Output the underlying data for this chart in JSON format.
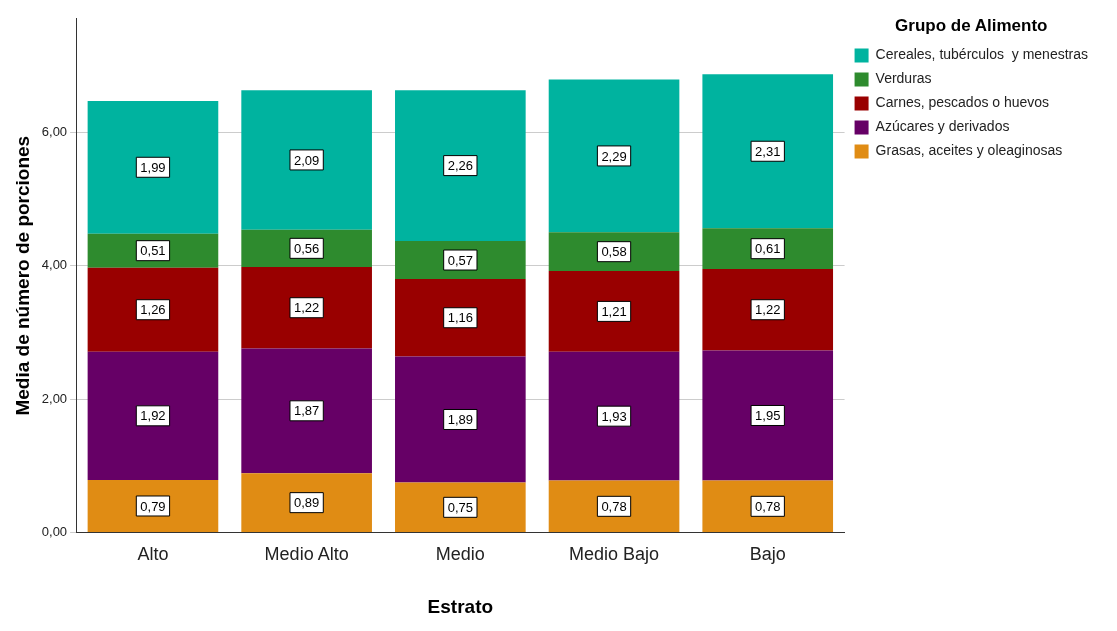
{
  "chart_data": {
    "type": "bar",
    "stacked": true,
    "xlabel": "Estrato",
    "ylabel": "Media de número de porciones",
    "legend_title": "Grupo de Alimento",
    "legend": "right",
    "categories": [
      "Alto",
      "Medio Alto",
      "Medio",
      "Medio Bajo",
      "Bajo"
    ],
    "ylim": [
      0,
      7.7
    ],
    "yticks": [
      {
        "value": 0,
        "label": "0,00"
      },
      {
        "value": 2,
        "label": "2,00"
      },
      {
        "value": 4,
        "label": "4,00"
      },
      {
        "value": 6,
        "label": "6,00"
      }
    ],
    "grid": "y",
    "series": [
      {
        "name": "Grasas, aceites y oleaginosas",
        "color": "#e08c14",
        "values": [
          0.79,
          0.89,
          0.75,
          0.78,
          0.78
        ],
        "value_labels": [
          "0,79",
          "0,89",
          "0,75",
          "0,78",
          "0,78"
        ]
      },
      {
        "name": "Azúcares y derivados",
        "color": "#660066",
        "values": [
          1.92,
          1.87,
          1.89,
          1.93,
          1.95
        ],
        "value_labels": [
          "1,92",
          "1,87",
          "1,89",
          "1,93",
          "1,95"
        ]
      },
      {
        "name": "Carnes, pescados o huevos",
        "color": "#990000",
        "values": [
          1.26,
          1.22,
          1.16,
          1.21,
          1.22
        ],
        "value_labels": [
          "1,26",
          "1,22",
          "1,16",
          "1,21",
          "1,22"
        ]
      },
      {
        "name": "Verduras",
        "color": "#2e8b2e",
        "values": [
          0.51,
          0.56,
          0.57,
          0.58,
          0.61
        ],
        "value_labels": [
          "0,51",
          "0,56",
          "0,57",
          "0,58",
          "0,61"
        ]
      },
      {
        "name": "Cereales, tubérculos  y menestras",
        "color": "#00b39f",
        "values": [
          1.99,
          2.09,
          2.26,
          2.29,
          2.31
        ],
        "value_labels": [
          "1,99",
          "2,09",
          "2,26",
          "2,29",
          "2,31"
        ]
      }
    ]
  }
}
